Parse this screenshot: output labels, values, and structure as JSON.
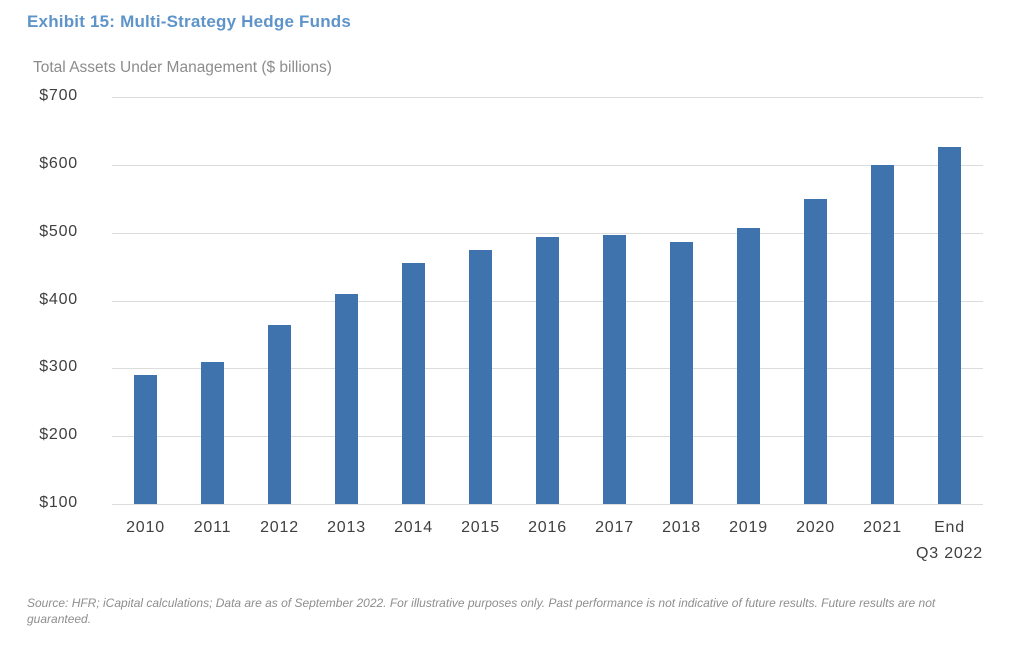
{
  "header": {
    "title": "Exhibit 15: Multi-Strategy Hedge Funds",
    "subtitle": "Total Assets Under Management ($ billions)"
  },
  "chart_data": {
    "type": "bar",
    "title": "Exhibit 15: Multi-Strategy Hedge Funds",
    "subtitle": "Total Assets Under Management ($ billions)",
    "categories": [
      "2010",
      "2011",
      "2012",
      "2013",
      "2014",
      "2015",
      "2016",
      "2017",
      "2018",
      "2019",
      "2020",
      "2021",
      "End\nQ3 2022"
    ],
    "values": [
      290,
      310,
      364,
      409,
      455,
      474,
      494,
      497,
      486,
      507,
      550,
      600,
      627
    ],
    "xlabel": "",
    "ylabel": "Total Assets Under Management ($ billions)",
    "ylim": [
      100,
      700
    ],
    "yticks": [
      700,
      600,
      500,
      400,
      300,
      200,
      100
    ],
    "ytick_labels": [
      "$700",
      "$600",
      "$500",
      "$400",
      "$300",
      "$200",
      "$100"
    ],
    "grid": true,
    "legend": "none",
    "bar_color": "#3f73ad",
    "gridline_color": "#dcdcdc"
  },
  "footer": {
    "source_text": "Source: HFR; iCapital calculations; Data are as of September 2022. For illustrative purposes only. Past performance is not indicative of future results. Future results are not guaranteed."
  }
}
